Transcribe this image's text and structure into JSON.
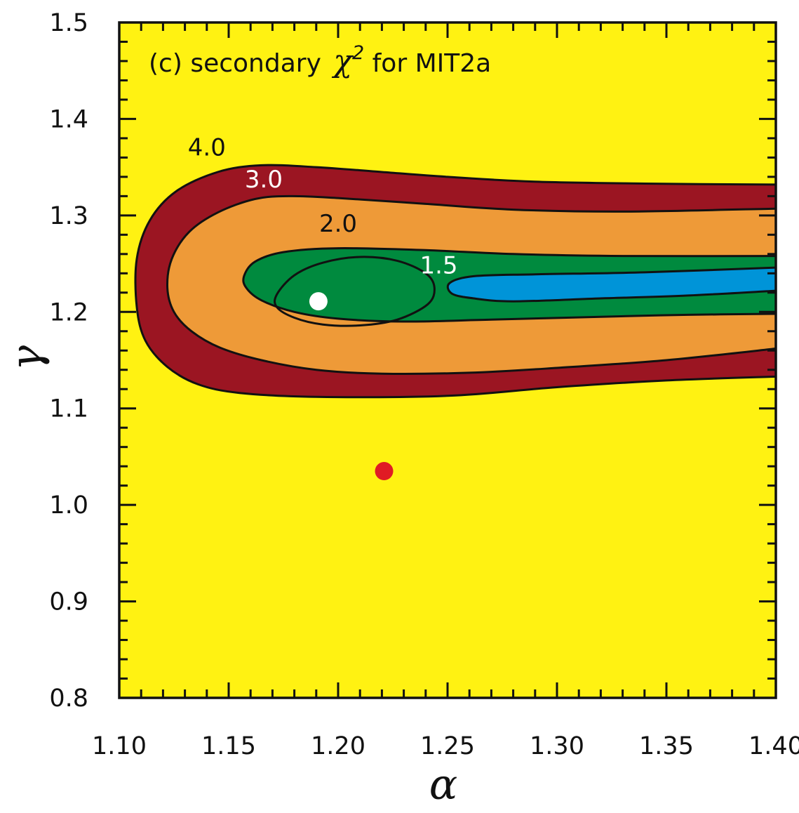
{
  "chart_data": {
    "type": "contour",
    "title": "(c) secondary χ² for MIT2a",
    "title_parts": {
      "prefix": "(c) secondary ",
      "chi": "χ",
      "sup": "2",
      "suffix": " for MIT2a"
    },
    "xlabel": "α",
    "ylabel": "γ",
    "xlim": [
      1.1,
      1.4
    ],
    "ylim": [
      0.8,
      1.5
    ],
    "x_ticks": [
      "1.10",
      "1.15",
      "1.20",
      "1.25",
      "1.30",
      "1.35",
      "1.40"
    ],
    "y_ticks": [
      "0.8",
      "0.9",
      "1.0",
      "1.1",
      "1.2",
      "1.3",
      "1.4",
      "1.5"
    ],
    "background_level": "> 4.0",
    "colors": {
      "above_4": "#FFF212",
      "band_3_4": "#9B1522",
      "band_2_3": "#EE9A38",
      "band_1_5_2": "#008A3E",
      "below_1_5": "#0094D8",
      "contour_line": "#111111",
      "white_marker": "#FFFFFF",
      "red_marker": "#E01B24"
    },
    "contour_labels": [
      {
        "text": "4.0",
        "alpha": 1.14,
        "gamma": 1.362,
        "color": "#111111"
      },
      {
        "text": "3.0",
        "alpha": 1.166,
        "gamma": 1.329,
        "color": "#FFFFFF"
      },
      {
        "text": "2.0",
        "alpha": 1.2,
        "gamma": 1.283,
        "color": "#111111"
      },
      {
        "text": "1.5",
        "alpha": 1.246,
        "gamma": 1.24,
        "color": "#FFFFFF"
      }
    ],
    "markers": [
      {
        "name": "minimum",
        "alpha": 1.191,
        "gamma": 1.211,
        "color": "#FFFFFF"
      },
      {
        "name": "reference",
        "alpha": 1.221,
        "gamma": 1.035,
        "color": "#E01B24"
      }
    ],
    "contours": [
      {
        "level": 4.0,
        "fill": "#9B1522",
        "closed": false,
        "points": [
          [
            1.4,
            1.332
          ],
          [
            1.34,
            1.333
          ],
          [
            1.29,
            1.335
          ],
          [
            1.25,
            1.34
          ],
          [
            1.22,
            1.345
          ],
          [
            1.19,
            1.35
          ],
          [
            1.165,
            1.352
          ],
          [
            1.145,
            1.345
          ],
          [
            1.126,
            1.325
          ],
          [
            1.114,
            1.295
          ],
          [
            1.108,
            1.255
          ],
          [
            1.108,
            1.205
          ],
          [
            1.112,
            1.17
          ],
          [
            1.122,
            1.143
          ],
          [
            1.136,
            1.125
          ],
          [
            1.155,
            1.116
          ],
          [
            1.19,
            1.112
          ],
          [
            1.25,
            1.113
          ],
          [
            1.3,
            1.122
          ],
          [
            1.35,
            1.129
          ],
          [
            1.4,
            1.133
          ]
        ]
      },
      {
        "level": 3.0,
        "fill": "#EE9A38",
        "closed": false,
        "points": [
          [
            1.4,
            1.307
          ],
          [
            1.33,
            1.304
          ],
          [
            1.28,
            1.306
          ],
          [
            1.24,
            1.312
          ],
          [
            1.2,
            1.318
          ],
          [
            1.178,
            1.32
          ],
          [
            1.162,
            1.317
          ],
          [
            1.145,
            1.303
          ],
          [
            1.132,
            1.283
          ],
          [
            1.124,
            1.255
          ],
          [
            1.122,
            1.225
          ],
          [
            1.125,
            1.2
          ],
          [
            1.133,
            1.18
          ],
          [
            1.146,
            1.163
          ],
          [
            1.165,
            1.15
          ],
          [
            1.19,
            1.14
          ],
          [
            1.22,
            1.136
          ],
          [
            1.26,
            1.137
          ],
          [
            1.3,
            1.142
          ],
          [
            1.35,
            1.15
          ],
          [
            1.4,
            1.162
          ]
        ]
      },
      {
        "level": 2.0,
        "fill": "#008A3E",
        "closed": false,
        "points": [
          [
            1.4,
            1.258
          ],
          [
            1.33,
            1.258
          ],
          [
            1.28,
            1.26
          ],
          [
            1.24,
            1.264
          ],
          [
            1.2,
            1.266
          ],
          [
            1.175,
            1.262
          ],
          [
            1.162,
            1.252
          ],
          [
            1.157,
            1.237
          ],
          [
            1.158,
            1.225
          ],
          [
            1.165,
            1.212
          ],
          [
            1.18,
            1.2
          ],
          [
            1.2,
            1.193
          ],
          [
            1.23,
            1.19
          ],
          [
            1.27,
            1.192
          ],
          [
            1.32,
            1.195
          ],
          [
            1.36,
            1.197
          ],
          [
            1.4,
            1.198
          ]
        ]
      },
      {
        "level": 1.5,
        "fill": "#0094D8",
        "closed": false,
        "points": [
          [
            1.4,
            1.246
          ],
          [
            1.34,
            1.241
          ],
          [
            1.29,
            1.239
          ],
          [
            1.262,
            1.237
          ],
          [
            1.251,
            1.23
          ],
          [
            1.252,
            1.219
          ],
          [
            1.262,
            1.214
          ],
          [
            1.28,
            1.211
          ],
          [
            1.32,
            1.214
          ],
          [
            1.36,
            1.217
          ],
          [
            1.4,
            1.222
          ]
        ]
      },
      {
        "level": 1.5,
        "fill": "none",
        "closed": true,
        "points": [
          [
            1.21,
            1.257
          ],
          [
            1.227,
            1.253
          ],
          [
            1.24,
            1.24
          ],
          [
            1.244,
            1.225
          ],
          [
            1.241,
            1.208
          ],
          [
            1.227,
            1.192
          ],
          [
            1.21,
            1.186
          ],
          [
            1.193,
            1.187
          ],
          [
            1.18,
            1.194
          ],
          [
            1.172,
            1.205
          ],
          [
            1.172,
            1.218
          ],
          [
            1.18,
            1.238
          ],
          [
            1.193,
            1.251
          ]
        ]
      }
    ]
  }
}
